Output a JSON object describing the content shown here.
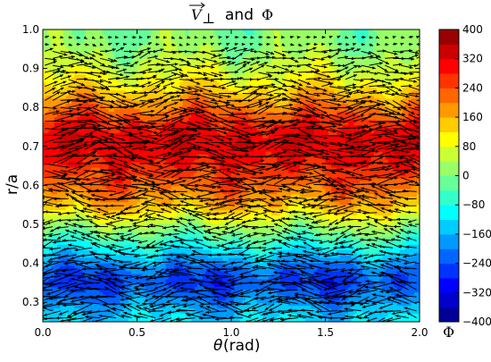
{
  "chart_data": {
    "type": "heatmap",
    "subtype": "filled-contour with quiver (vector) overlay",
    "title": {
      "vector_symbol": "V",
      "vector_subscript": "⊥",
      "connector": "and",
      "scalar_symbol": "Φ"
    },
    "xlabel": {
      "symbol": "θ",
      "rest": " (rad)"
    },
    "ylabel": "r/a",
    "xlim": [
      0.0,
      2.0
    ],
    "ylim": [
      0.25,
      1.0
    ],
    "x_ticks": [
      "0.0",
      "0.5",
      "1.0",
      "1.5",
      "2.0"
    ],
    "x_tick_values": [
      0.0,
      0.5,
      1.0,
      1.5,
      2.0
    ],
    "y_ticks": [
      "0.3",
      "0.4",
      "0.5",
      "0.6",
      "0.7",
      "0.8",
      "0.9",
      "1.0"
    ],
    "y_tick_values": [
      0.3,
      0.4,
      0.5,
      0.6,
      0.7,
      0.8,
      0.9,
      1.0
    ],
    "colorbar": {
      "label": "Φ",
      "range": [
        -400,
        400
      ],
      "ticks": [
        "400",
        "320",
        "240",
        "160",
        "80",
        "0",
        "−80",
        "−160",
        "−240",
        "−320",
        "−400"
      ],
      "tick_values": [
        400,
        320,
        240,
        160,
        80,
        0,
        -80,
        -160,
        -240,
        -320,
        -400
      ],
      "colormap": "jet",
      "level_step": 40
    },
    "radial_profile": {
      "r": [
        0.25,
        0.28,
        0.32,
        0.35,
        0.38,
        0.42,
        0.46,
        0.5,
        0.54,
        0.58,
        0.62,
        0.66,
        0.7,
        0.74,
        0.78,
        0.82,
        0.86,
        0.9,
        0.94,
        0.97,
        1.0
      ],
      "phi": [
        -120,
        -150,
        -215,
        -250,
        -225,
        -140,
        -50,
        40,
        140,
        200,
        245,
        285,
        320,
        300,
        240,
        175,
        110,
        60,
        25,
        5,
        0
      ]
    },
    "arrow_direction_by_radius": {
      "r": [
        0.25,
        0.4,
        0.55,
        0.6,
        0.72,
        0.85,
        1.0
      ],
      "direction": [
        -1,
        -1,
        -1,
        1,
        1,
        1,
        1
      ]
    },
    "grid": false,
    "legend": "colorbar-right"
  }
}
